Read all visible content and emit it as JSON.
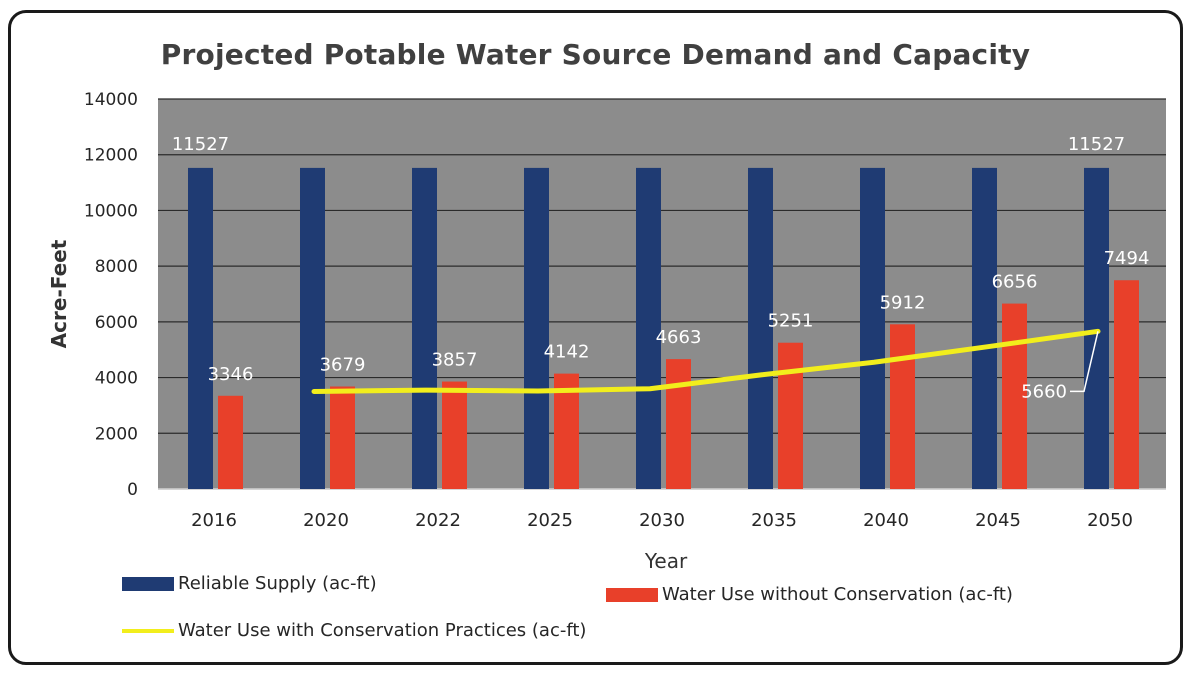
{
  "chart_data": {
    "type": "bar",
    "title": "Projected Potable Water Source Demand and Capacity",
    "xlabel": "Year",
    "ylabel": "Acre-Feet",
    "ylim": [
      0,
      14000
    ],
    "yticks": [
      0,
      2000,
      4000,
      6000,
      8000,
      10000,
      12000,
      14000
    ],
    "grid": true,
    "legend": "bottom",
    "categories": [
      "2016",
      "2020",
      "2022",
      "2025",
      "2030",
      "2035",
      "2040",
      "2045",
      "2050"
    ],
    "series": [
      {
        "name": "Reliable Supply (ac-ft)",
        "kind": "bar",
        "color": "#1f3b73",
        "values": [
          11527,
          11527,
          11527,
          11527,
          11527,
          11527,
          11527,
          11527,
          11527
        ],
        "labels": [
          "11527",
          "",
          "",
          "",
          "",
          "",
          "",
          "",
          "11527"
        ]
      },
      {
        "name": "Water Use without Conservation (ac-ft)",
        "kind": "bar",
        "color": "#e8402a",
        "values": [
          3346,
          3679,
          3857,
          4142,
          4663,
          5251,
          5912,
          6656,
          7494
        ],
        "labels": [
          "3346",
          "3679",
          "3857",
          "4142",
          "4663",
          "5251",
          "5912",
          "6656",
          "7494"
        ]
      },
      {
        "name": "Water Use with Conservation Practices (ac-ft)",
        "kind": "line",
        "color": "#f2ee1c",
        "values": [
          null,
          3500,
          3550,
          3520,
          3600,
          4100,
          4550,
          5100,
          5660
        ],
        "labels": [
          "",
          "",
          "",
          "",
          "",
          "",
          "",
          "",
          "5660"
        ]
      }
    ]
  }
}
